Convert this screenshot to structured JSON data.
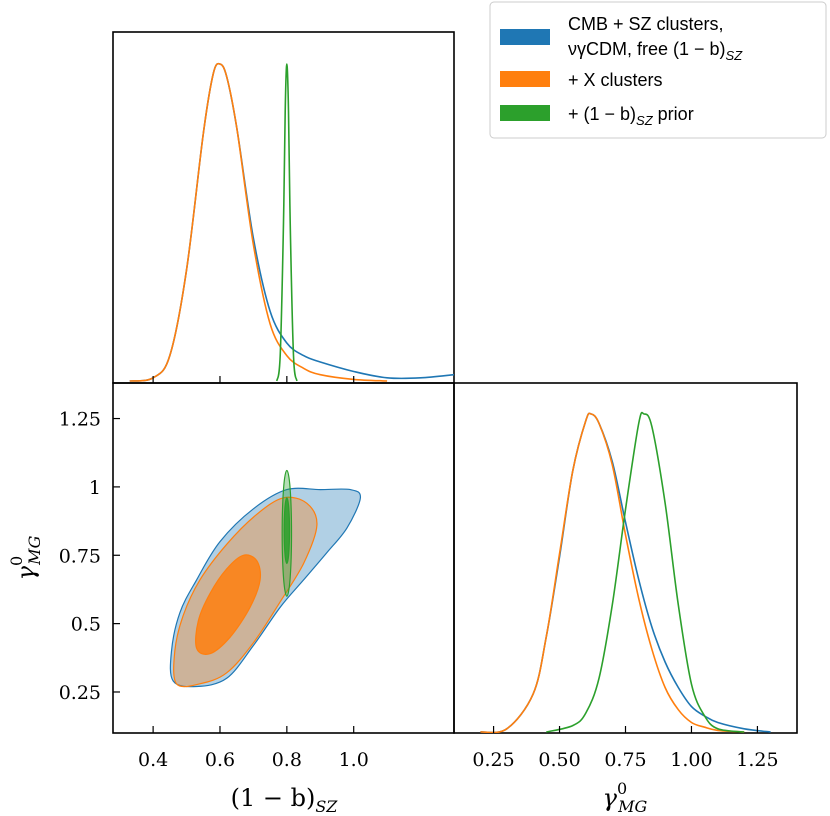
{
  "chart_data": {
    "type": "corner-plot",
    "colors": {
      "blue": "#1f77b4",
      "orange": "#ff7f0e",
      "green": "#2ca02c"
    },
    "legend": {
      "placement": "top-right",
      "entries": [
        {
          "line1": "CMB + SZ clusters,",
          "line2": "νγCDM, free (1 − b)",
          "line2_sub": "SZ",
          "color": "#1f77b4"
        },
        {
          "line1": "+ X clusters",
          "color": "#ff7f0e"
        },
        {
          "line1": "+ (1 − b)",
          "line1_sub": "SZ",
          "line1_suffix": " prior",
          "color": "#2ca02c"
        }
      ]
    },
    "panels": {
      "top": {
        "param": "(1 − b)_SZ",
        "xlim": [
          0.28,
          1.3
        ],
        "series": [
          {
            "name": "blue",
            "x": [
              0.33,
              0.4,
              0.45,
              0.5,
              0.55,
              0.58,
              0.6,
              0.62,
              0.65,
              0.7,
              0.75,
              0.8,
              0.85,
              0.9,
              1.0,
              1.1,
              1.2,
              1.3
            ],
            "y": [
              0,
              0.01,
              0.08,
              0.35,
              0.78,
              0.97,
              1.0,
              0.96,
              0.8,
              0.45,
              0.22,
              0.12,
              0.08,
              0.06,
              0.03,
              0.01,
              0.01,
              0.02
            ]
          },
          {
            "name": "orange",
            "x": [
              0.33,
              0.4,
              0.45,
              0.5,
              0.55,
              0.58,
              0.6,
              0.62,
              0.65,
              0.7,
              0.75,
              0.8,
              0.85,
              0.9,
              1.0,
              1.1
            ],
            "y": [
              0,
              0.01,
              0.08,
              0.35,
              0.78,
              0.97,
              1.0,
              0.96,
              0.8,
              0.43,
              0.18,
              0.08,
              0.04,
              0.02,
              0.005,
              0
            ]
          },
          {
            "name": "green",
            "x": [
              0.77,
              0.78,
              0.79,
              0.795,
              0.8,
              0.805,
              0.81,
              0.82,
              0.83
            ],
            "y": [
              0,
              0.08,
              0.5,
              0.85,
              1.0,
              0.85,
              0.5,
              0.08,
              0
            ]
          }
        ]
      },
      "corner": {
        "xlim": [
          0.28,
          1.3
        ],
        "ylim": [
          0.1,
          1.38
        ],
        "x_ticks": [
          0.4,
          0.6,
          0.8,
          1.0
        ],
        "x_tick_labels": [
          "0.4",
          "0.6",
          "0.8",
          "1.0"
        ],
        "y_ticks": [
          0.25,
          0.5,
          0.75,
          1.0,
          1.25
        ],
        "y_tick_labels": [
          "0.25",
          "0.5",
          "0.75",
          "1",
          "1.25"
        ],
        "xlabel_main": "(1 − b)",
        "xlabel_sub": "SZ",
        "ylabel_main": "γ",
        "ylabel_sub": "MG",
        "ylabel_sup": "0",
        "contours": [
          {
            "name": "blue-95",
            "level": "95%",
            "color": "#1f77b4",
            "points": [
              [
                0.46,
                0.29
              ],
              [
                0.53,
                0.27
              ],
              [
                0.62,
                0.3
              ],
              [
                0.7,
                0.42
              ],
              [
                0.78,
                0.56
              ],
              [
                0.85,
                0.66
              ],
              [
                0.92,
                0.76
              ],
              [
                0.98,
                0.85
              ],
              [
                1.02,
                0.96
              ],
              [
                0.99,
                0.99
              ],
              [
                0.9,
                0.99
              ],
              [
                0.8,
                0.99
              ],
              [
                0.7,
                0.92
              ],
              [
                0.6,
                0.8
              ],
              [
                0.53,
                0.66
              ],
              [
                0.48,
                0.54
              ],
              [
                0.455,
                0.4
              ]
            ]
          },
          {
            "name": "orange-95",
            "level": "95%",
            "color": "#ff7f0e",
            "points": [
              [
                0.47,
                0.28
              ],
              [
                0.54,
                0.28
              ],
              [
                0.62,
                0.32
              ],
              [
                0.7,
                0.43
              ],
              [
                0.78,
                0.58
              ],
              [
                0.85,
                0.72
              ],
              [
                0.89,
                0.86
              ],
              [
                0.86,
                0.94
              ],
              [
                0.79,
                0.96
              ],
              [
                0.71,
                0.9
              ],
              [
                0.62,
                0.79
              ],
              [
                0.54,
                0.66
              ],
              [
                0.49,
                0.53
              ],
              [
                0.465,
                0.4
              ]
            ]
          },
          {
            "name": "orange-68",
            "level": "68%",
            "color": "#ff7f0e",
            "points": [
              [
                0.53,
                0.41
              ],
              [
                0.57,
                0.39
              ],
              [
                0.63,
                0.45
              ],
              [
                0.69,
                0.56
              ],
              [
                0.72,
                0.66
              ],
              [
                0.71,
                0.73
              ],
              [
                0.67,
                0.75
              ],
              [
                0.62,
                0.7
              ],
              [
                0.57,
                0.61
              ],
              [
                0.535,
                0.51
              ]
            ]
          },
          {
            "name": "green-95",
            "level": "95%",
            "color": "#2ca02c",
            "ellipse": {
              "cx": 0.8,
              "cy": 0.83,
              "rx": 0.014,
              "ry": 0.23
            }
          },
          {
            "name": "green-68",
            "level": "68%",
            "color": "#2ca02c",
            "ellipse": {
              "cx": 0.8,
              "cy": 0.84,
              "rx": 0.008,
              "ry": 0.12
            }
          }
        ]
      },
      "right": {
        "param": "γ^0_MG",
        "xlim": [
          0.1,
          1.4
        ],
        "x_ticks": [
          0.25,
          0.5,
          0.75,
          1.0,
          1.25
        ],
        "x_tick_labels": [
          "0.25",
          "0.50",
          "0.75",
          "1.00",
          "1.25"
        ],
        "xlabel_main": "γ",
        "xlabel_sub": "MG",
        "xlabel_sup": "0",
        "series": [
          {
            "name": "blue",
            "x": [
              0.2,
              0.3,
              0.4,
              0.45,
              0.5,
              0.55,
              0.6,
              0.62,
              0.65,
              0.7,
              0.75,
              0.8,
              0.85,
              0.9,
              0.95,
              1.0,
              1.05,
              1.1,
              1.2,
              1.3
            ],
            "y": [
              0,
              0.01,
              0.12,
              0.3,
              0.55,
              0.82,
              0.98,
              1.0,
              0.97,
              0.85,
              0.66,
              0.48,
              0.33,
              0.22,
              0.14,
              0.08,
              0.05,
              0.03,
              0.01,
              0
            ]
          },
          {
            "name": "orange",
            "x": [
              0.2,
              0.3,
              0.4,
              0.45,
              0.5,
              0.55,
              0.6,
              0.62,
              0.65,
              0.7,
              0.75,
              0.8,
              0.85,
              0.9,
              0.95,
              1.0,
              1.05,
              1.1,
              1.2
            ],
            "y": [
              0,
              0.01,
              0.12,
              0.3,
              0.56,
              0.82,
              0.98,
              1.0,
              0.97,
              0.84,
              0.62,
              0.42,
              0.26,
              0.14,
              0.07,
              0.03,
              0.015,
              0.005,
              0
            ]
          },
          {
            "name": "green",
            "x": [
              0.45,
              0.55,
              0.6,
              0.65,
              0.7,
              0.75,
              0.8,
              0.82,
              0.85,
              0.9,
              0.95,
              1.0,
              1.05,
              1.1,
              1.2
            ],
            "y": [
              0,
              0.02,
              0.06,
              0.17,
              0.4,
              0.7,
              0.97,
              1.0,
              0.96,
              0.72,
              0.4,
              0.15,
              0.05,
              0.01,
              0
            ]
          }
        ]
      }
    }
  }
}
